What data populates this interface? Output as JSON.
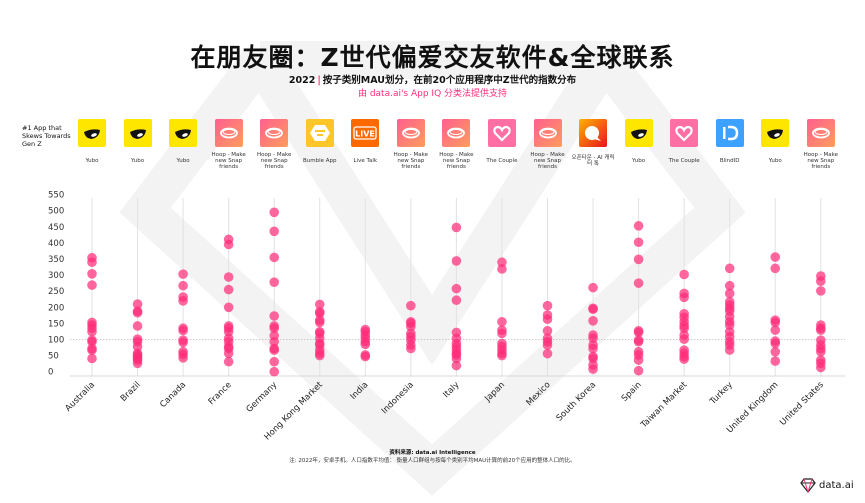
{
  "header": {
    "title": "在朋友圈：Z世代偏爱交友软件&全球联系",
    "subtitle_year": "2022",
    "subtitle_text": "按子类别MAU划分，在前20个应用程序中Z世代的指数分布",
    "powered_by": "由 data.ai's App IQ 分类法提供支持"
  },
  "apps_row_label": "#1 App that Skews Towards Gen Z",
  "apps": [
    {
      "name": "Yubo",
      "icon": "yubo-icon",
      "color": "#FFE600"
    },
    {
      "name": "Yubo",
      "icon": "yubo-icon",
      "color": "#FFE600"
    },
    {
      "name": "Yubo",
      "icon": "yubo-icon",
      "color": "#FFE600"
    },
    {
      "name": "Hoop - Make new Snap friends",
      "icon": "hoop-icon",
      "color": "#FF6B86"
    },
    {
      "name": "Hoop - Make new Snap friends",
      "icon": "hoop-icon",
      "color": "#FF6B86"
    },
    {
      "name": "Bumble App",
      "icon": "bumble-icon",
      "color": "#FFC629"
    },
    {
      "name": "Live Talk",
      "icon": "live-icon",
      "color": "#FF6A00"
    },
    {
      "name": "Hoop - Make new Snap friends",
      "icon": "hoop-icon",
      "color": "#FF6B86"
    },
    {
      "name": "Hoop - Make new Snap friends",
      "icon": "hoop-icon",
      "color": "#FF6B86"
    },
    {
      "name": "The Couple",
      "icon": "heart-icon",
      "color": "#FF6FA3"
    },
    {
      "name": "Hoop - Make new Snap friends",
      "icon": "hoop-icon",
      "color": "#FF6B86"
    },
    {
      "name": "오픈타운 - AI 캐릭터 톡",
      "icon": "speech-bubble-icon",
      "color": "#F04A1E"
    },
    {
      "name": "Yubo",
      "icon": "yubo-icon",
      "color": "#FFE600"
    },
    {
      "name": "The Couple",
      "icon": "heart-icon",
      "color": "#FF6FA3"
    },
    {
      "name": "BlindID",
      "icon": "id-icon",
      "color": "#3DA2FF"
    },
    {
      "name": "Yubo",
      "icon": "yubo-icon",
      "color": "#FFE600"
    },
    {
      "name": "Hoop - Make new Snap friends",
      "icon": "hoop-icon",
      "color": "#FF6B86"
    }
  ],
  "chart_data": {
    "type": "scatter",
    "title": "",
    "xlabel": "",
    "ylabel": "",
    "ylim": [
      0,
      550
    ],
    "yticks": [
      0,
      50,
      100,
      150,
      200,
      250,
      300,
      350,
      400,
      450,
      500,
      550
    ],
    "reference_line": 100,
    "grid": "vertical",
    "point_color": "#FF2D78",
    "categories": [
      "Australia",
      "Brazil",
      "Canada",
      "France",
      "Germany",
      "Hong Kong Market",
      "India",
      "Indonesia",
      "Italy",
      "Japan",
      "Mexico",
      "South Korea",
      "Spain",
      "Taiwan Market",
      "Turkey",
      "United Kingdom",
      "United States"
    ],
    "values": [
      [
        354,
        340,
        304,
        269,
        153,
        145,
        135,
        124,
        98,
        93,
        72,
        67,
        41
      ],
      [
        210,
        188,
        183,
        142,
        101,
        93,
        78,
        57,
        52,
        47,
        41,
        36,
        26
      ],
      [
        303,
        267,
        232,
        220,
        135,
        128,
        98,
        91,
        62,
        54,
        43
      ],
      [
        411,
        395,
        294,
        255,
        200,
        142,
        135,
        124,
        104,
        93,
        78,
        72,
        57,
        31
      ],
      [
        495,
        436,
        355,
        278,
        173,
        142,
        135,
        112,
        93,
        72,
        67,
        31,
        0
      ],
      [
        209,
        186,
        181,
        160,
        153,
        124,
        119,
        104,
        88,
        83,
        67,
        57,
        50
      ],
      [
        131,
        124,
        114,
        104,
        93,
        85,
        52,
        47
      ],
      [
        205,
        155,
        150,
        140,
        119,
        109,
        98,
        83,
        72
      ],
      [
        448,
        344,
        258,
        222,
        122,
        104,
        88,
        78,
        67,
        57,
        52,
        41,
        19
      ],
      [
        340,
        319,
        155,
        129,
        119,
        88,
        78,
        67,
        57,
        50
      ],
      [
        205,
        176,
        163,
        127,
        104,
        93,
        83,
        56
      ],
      [
        261,
        197,
        194,
        158,
        114,
        104,
        83,
        72,
        47,
        41,
        21,
        8
      ],
      [
        453,
        402,
        349,
        275,
        127,
        122,
        98,
        93,
        62,
        52,
        36,
        3
      ],
      [
        302,
        243,
        231,
        180,
        169,
        155,
        143,
        135,
        114,
        101,
        67,
        57,
        47,
        39
      ],
      [
        321,
        267,
        243,
        217,
        207,
        197,
        188,
        171,
        155,
        145,
        124,
        109,
        93,
        83,
        67
      ],
      [
        356,
        321,
        160,
        153,
        129,
        95,
        88,
        62,
        33
      ],
      [
        297,
        281,
        251,
        145,
        135,
        129,
        98,
        83,
        72,
        62,
        36,
        26,
        13
      ]
    ]
  },
  "footer": {
    "source": "资料来源: data.ai Intelligence",
    "note": "注: 2022年，安卓手机。人口指数平均值： 衡量人口群组与按每个类别平均MAU计算的前20个应用的整体人口的比。",
    "brand": "data.ai"
  }
}
